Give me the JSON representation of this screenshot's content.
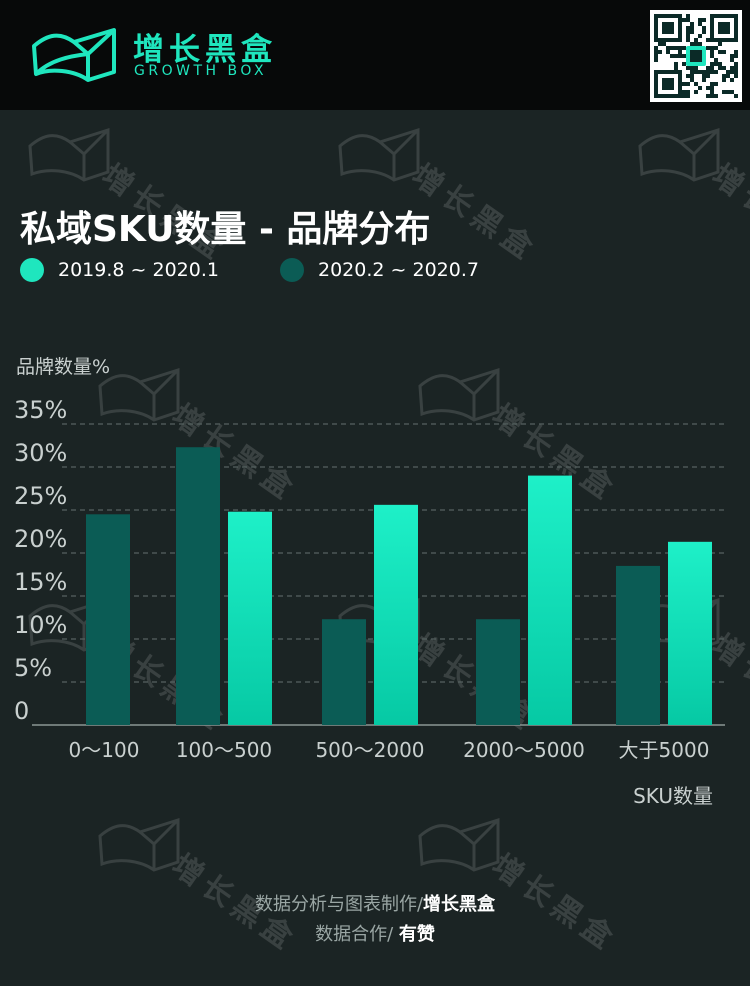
{
  "header": {
    "brand_cn": "增长黑盒",
    "brand_en": "GROWTH BOX",
    "icons": [
      "growth-box-logo-icon",
      "qr-code-icon"
    ]
  },
  "watermark": {
    "text": "增长黑盒"
  },
  "chart_data": {
    "type": "bar",
    "title": "私域SKU数量 - 品牌分布",
    "ylabel": "品牌数量%",
    "xlabel": "SKU数量",
    "ylim": [
      0,
      35
    ],
    "yticks": [
      0,
      5,
      10,
      15,
      20,
      25,
      30,
      35
    ],
    "ytick_labels": [
      "0",
      "5%",
      "10%",
      "15%",
      "20%",
      "25%",
      "30%",
      "35%"
    ],
    "grid": true,
    "legend_position": "top-left",
    "categories": [
      "0～100",
      "100～500",
      "500～2000",
      "2000～5000",
      "大于5000"
    ],
    "series": [
      {
        "name": "2019.8 ~ 2020.1",
        "color": "#1fe6be",
        "values": [
          null,
          24.8,
          25.6,
          29.0,
          21.3
        ]
      },
      {
        "name": "2020.2 ~ 2020.7",
        "color": "#0b5c55",
        "values": [
          24.5,
          32.3,
          12.3,
          12.3,
          18.5
        ]
      }
    ]
  },
  "footer": {
    "line1_prefix": "数据分析与图表制作/",
    "line1_bold": "增长黑盒",
    "line2_prefix": "数据合作/ ",
    "line2_bold": "有赞"
  }
}
